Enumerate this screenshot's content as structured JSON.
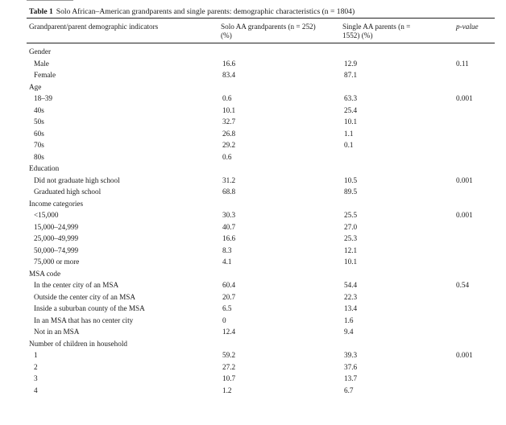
{
  "table": {
    "label": "Table 1",
    "title": "Solo African–American grandparents and single parents: demographic characteristics (n = 1804)",
    "columns": [
      "Grandparent/parent demographic indicators",
      "Solo AA grandparents (n = 252) (%)",
      "Single AA parents (n = 1552) (%)",
      "p-value"
    ],
    "rows": [
      {
        "label": "Gender",
        "category": true
      },
      {
        "label": "Male",
        "gp": "16.6",
        "sp": "12.9",
        "p": "0.11"
      },
      {
        "label": "Female",
        "gp": "83.4",
        "sp": "87.1"
      },
      {
        "label": "Age",
        "category": true
      },
      {
        "label": "18–39",
        "gp": "0.6",
        "sp": "63.3",
        "p": "0.001"
      },
      {
        "label": "40s",
        "gp": "10.1",
        "sp": "25.4"
      },
      {
        "label": "50s",
        "gp": "32.7",
        "sp": "10.1"
      },
      {
        "label": "60s",
        "gp": "26.8",
        "sp": "1.1"
      },
      {
        "label": "70s",
        "gp": "29.2",
        "sp": "0.1"
      },
      {
        "label": "80s",
        "gp": "0.6"
      },
      {
        "label": "Education",
        "category": true
      },
      {
        "label": "Did not graduate high school",
        "gp": "31.2",
        "sp": "10.5",
        "p": "0.001"
      },
      {
        "label": "Graduated high school",
        "gp": "68.8",
        "sp": "89.5"
      },
      {
        "label": "Income categories",
        "category": true
      },
      {
        "label": "<15,000",
        "gp": "30.3",
        "sp": "25.5",
        "p": "0.001"
      },
      {
        "label": "15,000–24,999",
        "gp": "40.7",
        "sp": "27.0"
      },
      {
        "label": "25,000–49,999",
        "gp": "16.6",
        "sp": "25.3"
      },
      {
        "label": "50,000–74,999",
        "gp": "8.3",
        "sp": "12.1"
      },
      {
        "label": "75,000 or more",
        "gp": "4.1",
        "sp": "10.1"
      },
      {
        "label": "MSA code",
        "category": true
      },
      {
        "label": "In the center city of an MSA",
        "gp": "60.4",
        "sp": "54.4",
        "p": "0.54"
      },
      {
        "label": "Outside the center city of an MSA",
        "gp": "20.7",
        "sp": "22.3"
      },
      {
        "label": "Inside a suburban county of the MSA",
        "gp": "6.5",
        "sp": "13.4"
      },
      {
        "label": "In an MSA that has no center city",
        "gp": "0",
        "sp": "1.6"
      },
      {
        "label": "Not in an MSA",
        "gp": "12.4",
        "sp": "9.4"
      },
      {
        "label": "Number of children in household",
        "category": true
      },
      {
        "label": "1",
        "gp": "59.2",
        "sp": "39.3",
        "p": "0.001"
      },
      {
        "label": "2",
        "gp": "27.2",
        "sp": "37.6"
      },
      {
        "label": "3",
        "gp": "10.7",
        "sp": "13.7"
      },
      {
        "label": "4",
        "gp": "1.2",
        "sp": "6.7"
      }
    ]
  }
}
